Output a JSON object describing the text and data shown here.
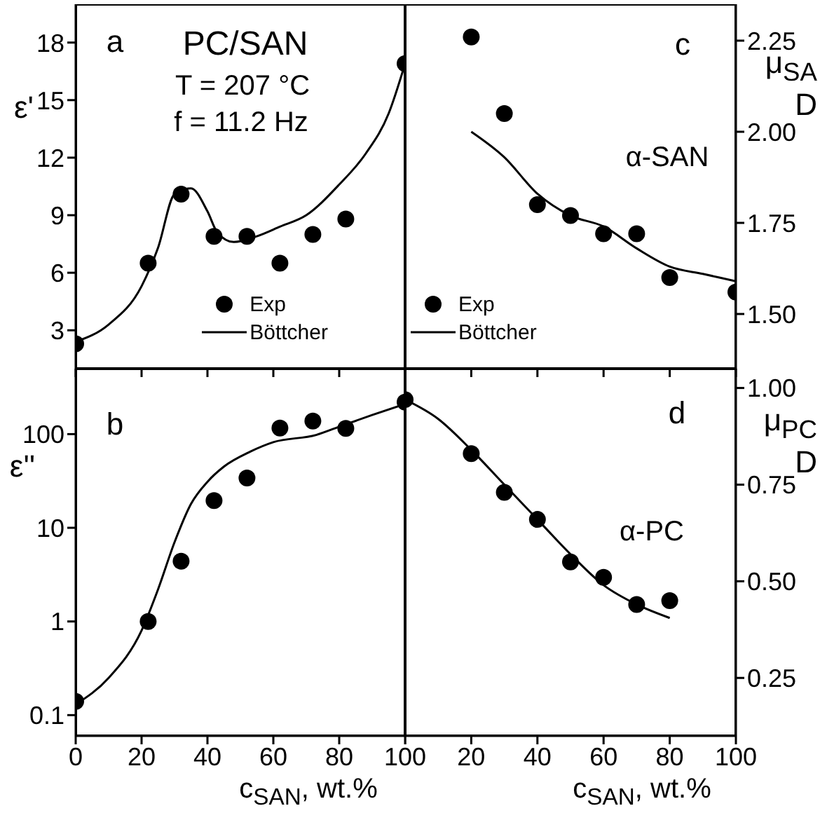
{
  "chart_data": [
    {
      "type": "scatter",
      "ylabel": "ε'",
      "annotations": [
        "a",
        "PC/SAN",
        "T = 207 °C",
        "f = 11.2 Hz"
      ],
      "xlim": [
        0,
        100
      ],
      "xticks": [
        0,
        20,
        40,
        60,
        80,
        100
      ],
      "ylim": [
        1,
        20
      ],
      "yticks": [
        3,
        6,
        9,
        12,
        15,
        18
      ],
      "tick_labels": "y",
      "legend": "bottom right",
      "series": [
        {
          "name": "Exp",
          "marker": "circle",
          "color": "#000000",
          "x": [
            0,
            22,
            32,
            42,
            52,
            62,
            72,
            82,
            100
          ],
          "values": [
            2.3,
            6.5,
            10.1,
            7.9,
            7.9,
            6.5,
            8.0,
            8.8,
            16.9
          ]
        },
        {
          "name": "Böttcher",
          "type": "line",
          "marker": "none",
          "color": "#000000",
          "x": [
            0,
            10,
            20,
            25,
            30,
            35,
            40,
            43,
            48,
            55,
            62,
            70,
            80,
            88,
            95,
            100
          ],
          "values": [
            2.4,
            3.3,
            5.3,
            7.3,
            10.1,
            10.4,
            9.2,
            8.1,
            7.6,
            7.9,
            8.4,
            9.0,
            10.6,
            12.2,
            14.3,
            16.9
          ]
        }
      ]
    },
    {
      "type": "scatter",
      "y2label": "μ$_{SA}$ D",
      "annotations": [
        "c",
        "α-SAN"
      ],
      "xlim": [
        0,
        100
      ],
      "xticks": [
        0,
        20,
        40,
        60,
        80,
        100
      ],
      "y2lim": [
        1.35,
        2.35
      ],
      "y2ticks": [
        {
          "value": 1.5,
          "label": "1.50"
        },
        1.75,
        {
          "value": 2.0,
          "label": "2.00"
        },
        2.25
      ],
      "tick_labels": "y",
      "legend": "bottom left",
      "series": [
        {
          "name": "Exp",
          "marker": "circle",
          "color": "#000000",
          "axis": "y2",
          "x": [
            20,
            30,
            40,
            50,
            60,
            70,
            80,
            100
          ],
          "values": [
            2.26,
            2.05,
            1.8,
            1.77,
            1.72,
            1.72,
            1.6,
            1.56
          ]
        },
        {
          "name": "Böttcher",
          "type": "line",
          "marker": "none",
          "color": "#000000",
          "axis": "y2",
          "x": [
            20,
            30,
            40,
            50,
            60,
            70,
            80,
            90,
            100
          ],
          "values": [
            2.0,
            1.93,
            1.83,
            1.77,
            1.74,
            1.68,
            1.63,
            1.61,
            1.59
          ]
        }
      ]
    },
    {
      "type": "scatter",
      "ylabel": "ε''",
      "xlabel": "c$_{SAN}$, wt.%",
      "annotations": [
        "b"
      ],
      "xlim": [
        0,
        100
      ],
      "xticks": [
        0,
        20,
        40,
        60,
        80,
        100
      ],
      "ylim": [
        0.06,
        500
      ],
      "yticks": [
        0.1,
        1,
        10,
        100
      ],
      "log": "y",
      "series": [
        {
          "marker": "circle",
          "color": "#000000",
          "x": [
            0,
            22,
            32,
            42,
            52,
            62,
            72,
            82,
            100
          ],
          "values": [
            0.14,
            1.0,
            4.4,
            19.5,
            34,
            116,
            138,
            115,
            220
          ]
        },
        {
          "type": "line",
          "marker": "none",
          "color": "#000000",
          "x": [
            0,
            10,
            20,
            25,
            30,
            35,
            40,
            45,
            53,
            60,
            73,
            80,
            90,
            100
          ],
          "values": [
            0.13,
            0.25,
            0.8,
            2.2,
            7,
            18,
            31,
            45,
            65,
            82,
            98,
            120,
            160,
            210
          ]
        }
      ]
    },
    {
      "type": "scatter",
      "y2label": "μ$_{PC}$ D",
      "xlabel": "c$_{SAN}$, wt.%",
      "annotations": [
        "d",
        "α-PC"
      ],
      "xlim": [
        0,
        100
      ],
      "xticks": [
        {
          "value": 0,
          "label": null
        },
        20,
        40,
        60,
        80,
        100
      ],
      "y2lim": [
        0.1,
        1.05
      ],
      "y2ticks": [
        0.25,
        {
          "value": 0.5,
          "label": "0.50"
        },
        0.75,
        {
          "value": 1.0,
          "label": "1.00"
        }
      ],
      "series": [
        {
          "marker": "circle",
          "color": "#000000",
          "axis": "y2",
          "x": [
            0,
            20,
            30,
            40,
            50,
            60,
            70,
            80
          ],
          "values": [
            0.97,
            0.83,
            0.73,
            0.66,
            0.55,
            0.51,
            0.44,
            0.45
          ]
        },
        {
          "type": "line",
          "marker": "none",
          "color": "#000000",
          "axis": "y2",
          "x": [
            0,
            10,
            20,
            30,
            40,
            50,
            60,
            70,
            80
          ],
          "values": [
            0.97,
            0.92,
            0.84,
            0.75,
            0.66,
            0.57,
            0.49,
            0.44,
            0.405
          ]
        }
      ]
    }
  ]
}
